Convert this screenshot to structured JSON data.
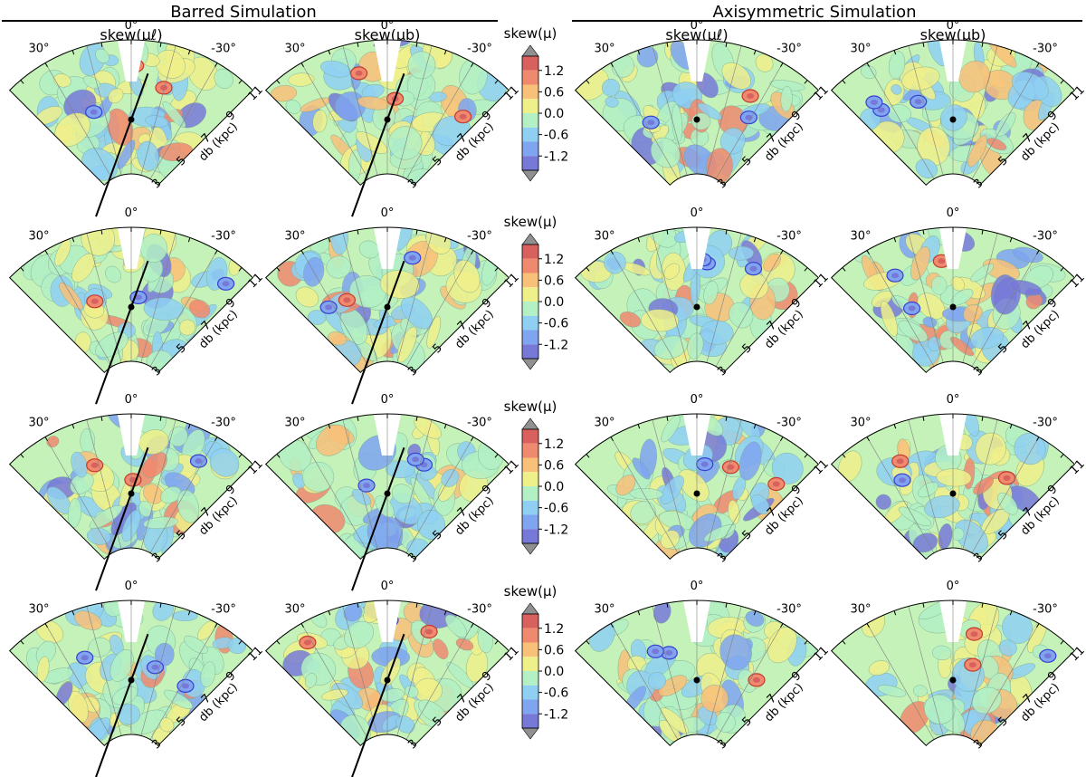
{
  "sections": [
    {
      "title": "Barred Simulation"
    },
    {
      "title": "Axisymmetric Simulation"
    }
  ],
  "column_titles": [
    "skew(μℓ)",
    "skew(μb)",
    "skew(μℓ)",
    "skew(μb)"
  ],
  "colorbar": {
    "label": "skew(μ)",
    "ticks": [
      "1.2",
      "0.6",
      "0.0",
      "-0.6",
      "-1.2"
    ],
    "levels": [
      -1.4,
      1.4
    ],
    "colors": [
      "#7779d8",
      "#7fa4f0",
      "#8fd0f2",
      "#b3f0c4",
      "#f0f08a",
      "#f8c079",
      "#f08a6e",
      "#d8615e"
    ]
  },
  "panel_labels": {
    "angle_left": "30°",
    "angle_mid": "0°",
    "angle_right": "-30°",
    "radial_ticks": [
      "3",
      "5",
      "7",
      "9",
      "11"
    ],
    "radial_label": "d_b (kpc)"
  },
  "chart_data": {
    "type": "heatmap",
    "description": "4x4 grid of polar-wedge skewness maps",
    "levels": [
      -1.2,
      -0.6,
      0.0,
      0.6,
      1.2
    ],
    "theta_range_deg": [
      45,
      -45
    ],
    "r_range_kpc": [
      3,
      11
    ],
    "bar_angle_deg": -20,
    "columns": [
      {
        "section": "Barred Simulation",
        "quantity": "skew(μℓ)",
        "bar": true
      },
      {
        "section": "Barred Simulation",
        "quantity": "skew(μb)",
        "bar": true
      },
      {
        "section": "Axisymmetric Simulation",
        "quantity": "skew(μℓ)",
        "bar": false
      },
      {
        "section": "Axisymmetric Simulation",
        "quantity": "skew(μb)",
        "bar": false
      }
    ],
    "rows": 4
  }
}
